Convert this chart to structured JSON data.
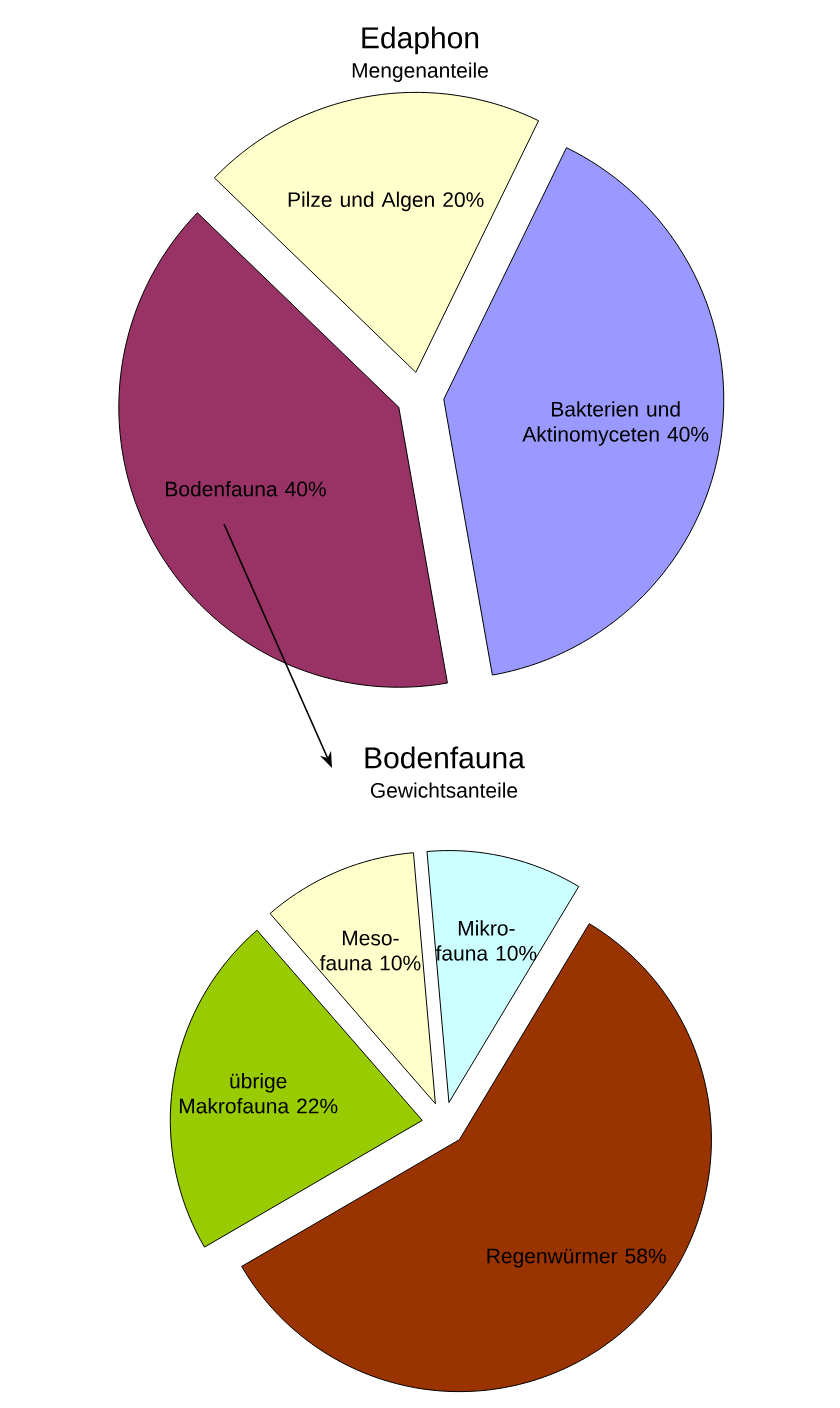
{
  "chart_data": [
    {
      "type": "pie",
      "title": "Edaphon",
      "subtitle": "Mengenanteile",
      "categories": [
        "Pilze und Algen",
        "Bakterien und Aktinomyceten",
        "Bodenfauna"
      ],
      "values": [
        20,
        40,
        40
      ],
      "value_labels": [
        "20%",
        "40%",
        "40%"
      ],
      "colors": [
        "#ffffcc",
        "#9999ff",
        "#993366"
      ]
    },
    {
      "type": "pie",
      "title": "Bodenfauna",
      "subtitle": "Gewichtsanteile",
      "categories": [
        "Mikro-fauna",
        "Regenwürmer",
        "übrige Makrofauna",
        "Meso-fauna"
      ],
      "values": [
        10,
        58,
        22,
        10
      ],
      "value_labels": [
        "10%",
        "58%",
        "22%",
        "10%"
      ],
      "colors": [
        "#ccffff",
        "#993300",
        "#99cc00",
        "#ffffcc"
      ]
    }
  ]
}
